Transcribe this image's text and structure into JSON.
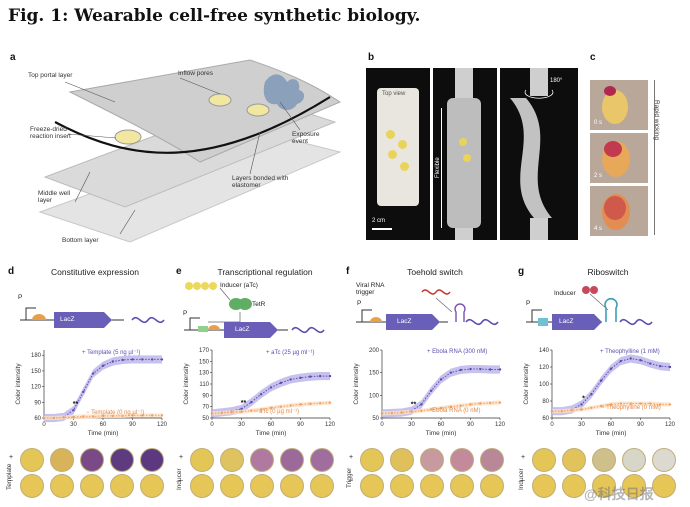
{
  "figure": {
    "title": "Fig. 1: Wearable cell-free synthetic biology.",
    "colors": {
      "accent_purple": "#5a4fb0",
      "orange": "#f0a060",
      "band_purple": "#b9b1e8",
      "band_orange": "#fde0c2",
      "yellow": "#e9d35a"
    }
  },
  "panel_a": {
    "label": "a",
    "annotations": {
      "top_portal": "Top portal layer",
      "inflow": "Inflow pores",
      "freeze": "Freeze-dried reaction insert",
      "exposure": "Exposure event",
      "middle": "Middle well layer",
      "bonded": "Layers bonded with elastomer",
      "bottom": "Bottom layer"
    }
  },
  "panel_b": {
    "label": "b",
    "top_view": "Top view",
    "scale": "2 cm",
    "flexible": "Flexible",
    "rotation": "180°"
  },
  "panel_c": {
    "label": "c",
    "times": [
      "0 s",
      "2 s",
      "4 s"
    ],
    "wicking": "Rapid wicking"
  },
  "panel_d": {
    "label": "d",
    "title": "Constitutive expression",
    "promoter": "P",
    "gene": "LacZ",
    "plot_line_label": "+ Template (5 ng µl⁻¹)",
    "plot_base_label": "− Template (0 ng µl⁻¹)",
    "well_side": "Template"
  },
  "panel_e": {
    "label": "e",
    "title": "Transcriptional regulation",
    "inducer": "Inducer (aTc)",
    "repressor": "TetR",
    "promoter": "P",
    "gene": "LacZ",
    "plot_line_label": "+ aTc (25 µg ml⁻¹)",
    "plot_base_label": "− aTc (0 µg ml⁻¹)",
    "well_side": "Inducer"
  },
  "panel_f": {
    "label": "f",
    "title": "Toehold switch",
    "trigger": "Viral RNA trigger",
    "promoter": "P",
    "gene": "LacZ",
    "plot_line_label": "+ Ebola RNA (300 nM)",
    "plot_base_label": "− Ebola RNA (0 nM)",
    "well_side": "Trigger"
  },
  "panel_g": {
    "label": "g",
    "title": "Riboswitch",
    "inducer": "Inducer",
    "promoter": "P",
    "gene": "LacZ",
    "plot_line_label": "+ Theophylline (1 mM)",
    "plot_base_label": "− Theophylline (0 mM)",
    "well_side": "Inducer"
  },
  "wells": {
    "plus": "+",
    "minus": "−"
  },
  "watermark": "@科技日报",
  "chart_data": [
    {
      "type": "line",
      "title": "",
      "xlabel": "Time (min)",
      "ylabel": "Color intensity",
      "xlim": [
        0,
        120
      ],
      "ylim": [
        60,
        190
      ],
      "xticks": [
        0,
        30,
        60,
        90,
        120
      ],
      "yticks": [
        60,
        90,
        120,
        150,
        180
      ],
      "x": [
        0,
        10,
        20,
        30,
        40,
        50,
        60,
        70,
        80,
        90,
        100,
        110,
        120
      ],
      "series": [
        {
          "name": "+ Template (5 ng µl⁻¹)",
          "values": [
            60,
            60,
            62,
            75,
            110,
            145,
            160,
            168,
            171,
            172,
            172,
            172,
            172
          ]
        },
        {
          "name": "− Template (0 ng µl⁻¹)",
          "values": [
            60,
            60,
            61,
            62,
            63,
            63,
            64,
            64,
            64,
            65,
            65,
            65,
            65
          ]
        }
      ],
      "annotation": "**"
    },
    {
      "type": "line",
      "title": "",
      "xlabel": "Time (min)",
      "ylabel": "Color intensity",
      "xlim": [
        0,
        120
      ],
      "ylim": [
        50,
        170
      ],
      "xticks": [
        0,
        30,
        60,
        90,
        120
      ],
      "yticks": [
        50,
        70,
        90,
        110,
        130,
        150,
        170
      ],
      "x": [
        0,
        10,
        20,
        30,
        40,
        50,
        60,
        70,
        80,
        90,
        100,
        110,
        120
      ],
      "series": [
        {
          "name": "+ aTc (25 µg ml⁻¹)",
          "values": [
            58,
            60,
            62,
            66,
            78,
            92,
            104,
            112,
            118,
            121,
            123,
            124,
            124
          ]
        },
        {
          "name": "− aTc (0 µg ml⁻¹)",
          "values": [
            58,
            59,
            60,
            61,
            63,
            65,
            68,
            70,
            72,
            74,
            75,
            76,
            77
          ]
        }
      ],
      "annotation": "**"
    },
    {
      "type": "line",
      "title": "",
      "xlabel": "Time (min)",
      "ylabel": "Color intensity",
      "xlim": [
        0,
        120
      ],
      "ylim": [
        50,
        200
      ],
      "xticks": [
        0,
        30,
        60,
        90,
        120
      ],
      "yticks": [
        50,
        100,
        150,
        200
      ],
      "x": [
        0,
        10,
        20,
        30,
        40,
        50,
        60,
        70,
        80,
        90,
        100,
        110,
        120
      ],
      "series": [
        {
          "name": "+ Ebola RNA (300 nM)",
          "values": [
            60,
            61,
            62,
            66,
            80,
            110,
            135,
            150,
            156,
            158,
            158,
            157,
            157
          ]
        },
        {
          "name": "− Ebola RNA (0 nM)",
          "values": [
            60,
            61,
            62,
            64,
            66,
            69,
            72,
            75,
            77,
            80,
            82,
            83,
            84
          ]
        }
      ],
      "annotation": "**"
    },
    {
      "type": "line",
      "title": "",
      "xlabel": "Time (min)",
      "ylabel": "Color intensity",
      "xlim": [
        0,
        120
      ],
      "ylim": [
        60,
        140
      ],
      "xticks": [
        0,
        30,
        60,
        90,
        120
      ],
      "yticks": [
        60,
        80,
        100,
        120,
        140
      ],
      "x": [
        0,
        10,
        20,
        30,
        40,
        50,
        60,
        70,
        80,
        90,
        100,
        110,
        120
      ],
      "series": [
        {
          "name": "+ Theophylline (1 mM)",
          "values": [
            68,
            68,
            70,
            76,
            88,
            104,
            118,
            127,
            130,
            128,
            124,
            121,
            120
          ]
        },
        {
          "name": "− Theophylline (0 mM)",
          "values": [
            68,
            68,
            69,
            70,
            72,
            74,
            76,
            77,
            77,
            77,
            77,
            76,
            76
          ]
        }
      ],
      "annotation": "*"
    }
  ]
}
